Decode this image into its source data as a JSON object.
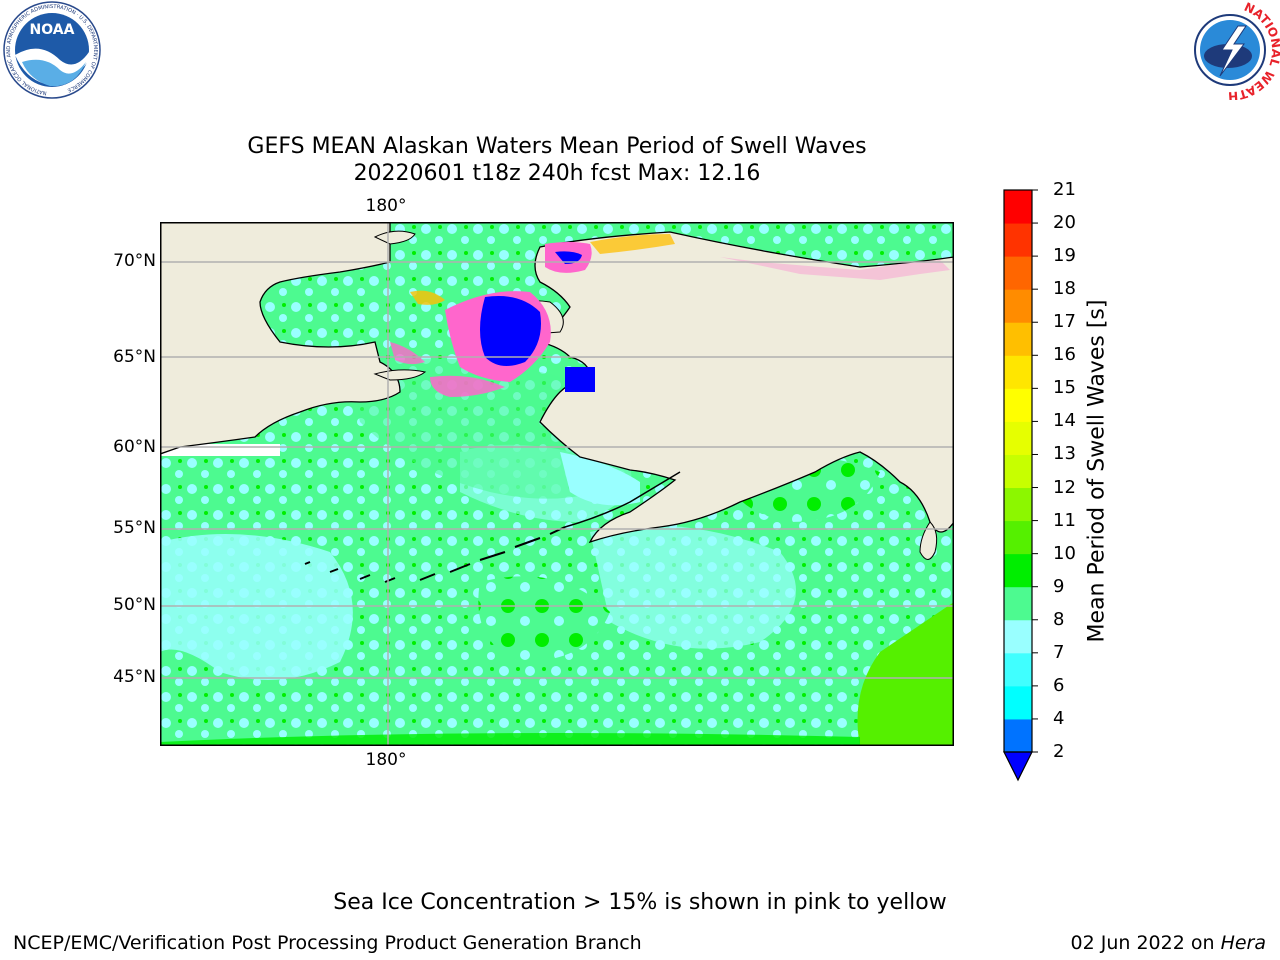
{
  "logos": {
    "noaa": {
      "text": "NOAA",
      "ring_text": "NATIONAL OCEANIC AND ATMOSPHERIC ADMINISTRATION · U.S. DEPARTMENT OF COMMERCE"
    },
    "nws": {
      "ring_text": "NATIONAL WEATHER SERVICE"
    }
  },
  "title": {
    "line1": "GEFS MEAN Alaskan Waters Mean Period of Swell Waves",
    "line2": "20220601 t18z 240h fcst   Max: 12.16"
  },
  "map": {
    "lon_label_top": "180°",
    "lon_label_bottom": "180°",
    "lat_labels": [
      "70°N",
      "65°N",
      "60°N",
      "55°N",
      "50°N",
      "45°N"
    ],
    "colors": {
      "land": "#efecdc",
      "ocean_low": "#99ffff",
      "ocean_mid": "#4dfa90",
      "ocean_high": "#00ee00",
      "ice_pink": "#ff66cc",
      "ice_blue": "#0000ff",
      "grid": "#b0b0b0"
    }
  },
  "colorbar": {
    "label": "Mean Period of Swell Waves [s]",
    "ticks": [
      "2",
      "4",
      "6",
      "7",
      "8",
      "9",
      "10",
      "11",
      "12",
      "13",
      "14",
      "15",
      "16",
      "17",
      "18",
      "19",
      "20",
      "21"
    ],
    "colors": [
      "#0073ff",
      "#00ffff",
      "#40ffff",
      "#99ffff",
      "#4dfa90",
      "#00ee00",
      "#55f000",
      "#8cf700",
      "#c7ff00",
      "#e6ff00",
      "#ffff00",
      "#ffe600",
      "#ffbf00",
      "#ff8c00",
      "#ff6600",
      "#ff3300",
      "#ff0000"
    ],
    "under_color": "#0000ff"
  },
  "footer": {
    "note": "Sea Ice Concentration > 15% is shown in pink to yellow",
    "credit": "NCEP/EMC/Verification Post Processing Product Generation Branch",
    "date": "02 Jun 2022 on ",
    "host": "Hera"
  }
}
